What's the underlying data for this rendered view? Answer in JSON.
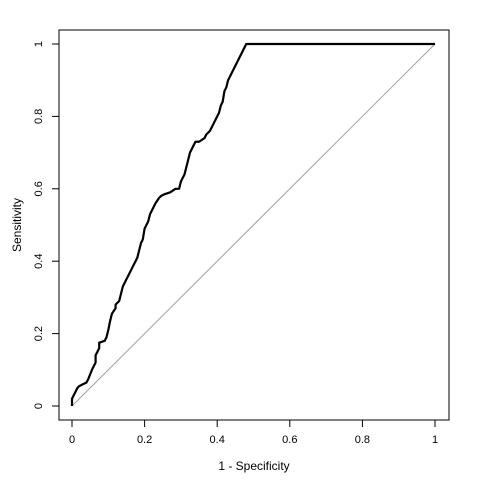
{
  "chart_data": {
    "type": "line",
    "title": "",
    "xlabel": "1 - Specificity",
    "ylabel": "Sensitivity",
    "xlim": [
      0,
      1
    ],
    "ylim": [
      0,
      1
    ],
    "x_ticks": [
      "0",
      "0.2",
      "0.4",
      "0.6",
      "0.8",
      "1"
    ],
    "y_ticks": [
      "0",
      "0.2",
      "0.4",
      "0.6",
      "0.8",
      "1"
    ],
    "grid": false,
    "reference_line": {
      "from": [
        0,
        0
      ],
      "to": [
        1,
        1
      ],
      "color": "#a0a0a0"
    },
    "series": [
      {
        "color": "#000000",
        "x": [
          0,
          0,
          0.005,
          0.01,
          0.015,
          0.02,
          0.03,
          0.04,
          0.045,
          0.055,
          0.065,
          0.065,
          0.075,
          0.075,
          0.09,
          0.095,
          0.1,
          0.105,
          0.11,
          0.12,
          0.12,
          0.13,
          0.135,
          0.14,
          0.145,
          0.15,
          0.16,
          0.165,
          0.17,
          0.175,
          0.18,
          0.185,
          0.19,
          0.195,
          0.2,
          0.205,
          0.21,
          0.215,
          0.22,
          0.225,
          0.23,
          0.24,
          0.245,
          0.255,
          0.27,
          0.285,
          0.295,
          0.3,
          0.31,
          0.315,
          0.32,
          0.325,
          0.33,
          0.335,
          0.34,
          0.345,
          0.35,
          0.365,
          0.37,
          0.38,
          0.385,
          0.39,
          0.395,
          0.4,
          0.405,
          0.41,
          0.415,
          0.42,
          0.425,
          0.43,
          0.435,
          0.44,
          0.445,
          0.45,
          0.455,
          0.46,
          0.465,
          0.47,
          0.475,
          0.48,
          0.485,
          0.5,
          0.6,
          0.8,
          1
        ],
        "y": [
          0,
          0.02,
          0.03,
          0.04,
          0.05,
          0.055,
          0.06,
          0.065,
          0.075,
          0.1,
          0.12,
          0.14,
          0.16,
          0.175,
          0.18,
          0.19,
          0.21,
          0.235,
          0.255,
          0.27,
          0.28,
          0.29,
          0.31,
          0.33,
          0.34,
          0.35,
          0.37,
          0.38,
          0.39,
          0.4,
          0.41,
          0.43,
          0.45,
          0.46,
          0.49,
          0.5,
          0.51,
          0.53,
          0.54,
          0.55,
          0.56,
          0.575,
          0.58,
          0.585,
          0.59,
          0.6,
          0.6,
          0.62,
          0.64,
          0.66,
          0.68,
          0.7,
          0.71,
          0.72,
          0.73,
          0.73,
          0.73,
          0.74,
          0.75,
          0.76,
          0.77,
          0.78,
          0.79,
          0.8,
          0.81,
          0.83,
          0.84,
          0.87,
          0.88,
          0.9,
          0.91,
          0.92,
          0.93,
          0.94,
          0.95,
          0.96,
          0.97,
          0.98,
          0.99,
          1.0,
          1.0,
          1.0,
          1.0,
          1.0,
          1.0
        ]
      }
    ]
  }
}
